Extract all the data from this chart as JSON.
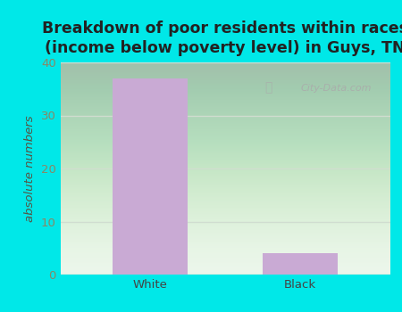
{
  "title": "Breakdown of poor residents within races\n(income below poverty level) in Guys, TN",
  "categories": [
    "White",
    "Black"
  ],
  "values": [
    37,
    4
  ],
  "bar_color": "#c9aad4",
  "ylabel": "absolute numbers",
  "ylim": [
    0,
    40
  ],
  "yticks": [
    0,
    10,
    20,
    30,
    40
  ],
  "background_color": "#00e8e8",
  "plot_bg_top": "#f5f5f8",
  "plot_bg_bottom": "#e8f5e8",
  "grid_color": "#d0ddd0",
  "title_fontsize": 12.5,
  "label_fontsize": 9.5,
  "tick_fontsize": 9.5,
  "tick_color": "#888866",
  "ylabel_color": "#555544",
  "watermark": "City-Data.com",
  "bar_width": 0.5
}
